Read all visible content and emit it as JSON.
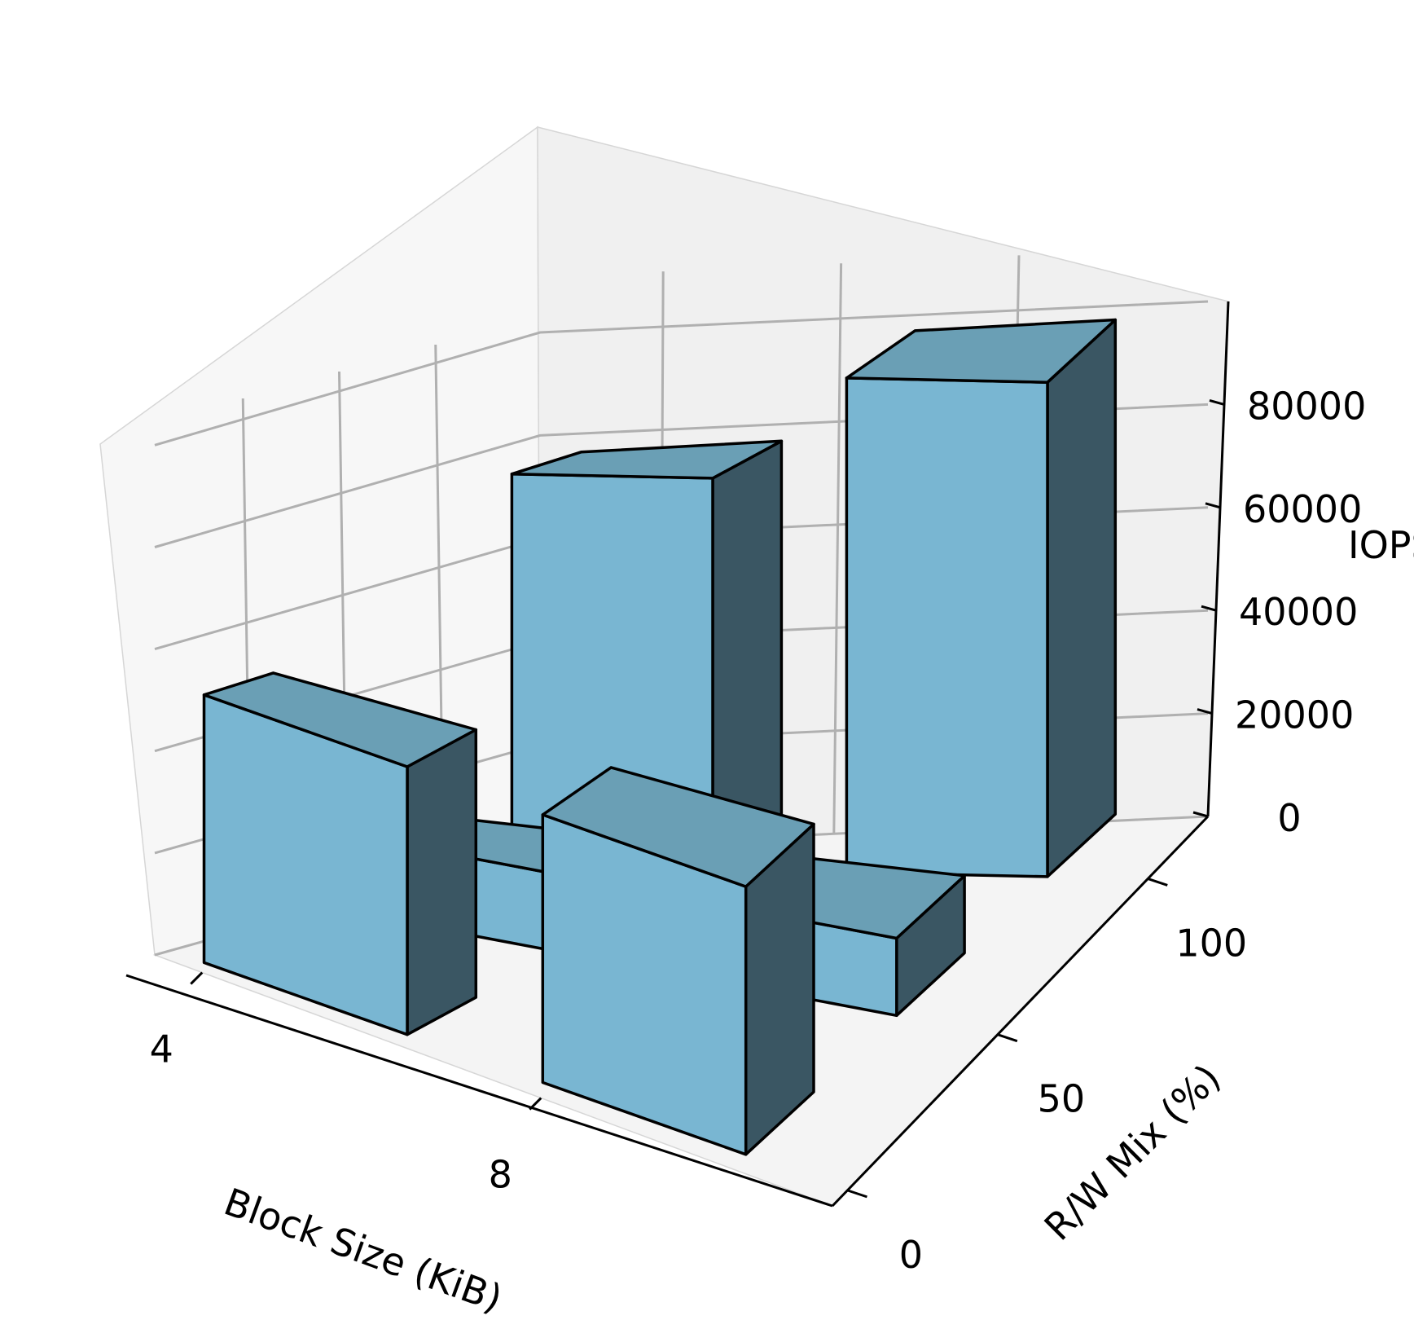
{
  "chart_data": {
    "type": "bar3d",
    "title": "",
    "xlabel": "Block Size (KiB)",
    "ylabel": "R/W Mix (%)",
    "zlabel": "IOPS",
    "x_ticks": [
      "4",
      "8"
    ],
    "y_ticks": [
      "0",
      "50",
      "100"
    ],
    "z_ticks": [
      "0",
      "20000",
      "40000",
      "60000",
      "80000"
    ],
    "zlim": [
      0,
      100000
    ],
    "grid": true,
    "colors": {
      "top": "#6a9fb5",
      "front": "#79b6d2",
      "side": "#3a5663",
      "edge": "#000000"
    },
    "bars": [
      {
        "block_size": "4",
        "rw_mix": "100",
        "value": 76000
      },
      {
        "block_size": "8",
        "rw_mix": "100",
        "value": 96000
      },
      {
        "block_size": "4",
        "rw_mix": "50",
        "value": 15000
      },
      {
        "block_size": "8",
        "rw_mix": "50",
        "value": 15000
      },
      {
        "block_size": "4",
        "rw_mix": "0",
        "value": 52000
      },
      {
        "block_size": "8",
        "rw_mix": "0",
        "value": 52000
      }
    ]
  }
}
